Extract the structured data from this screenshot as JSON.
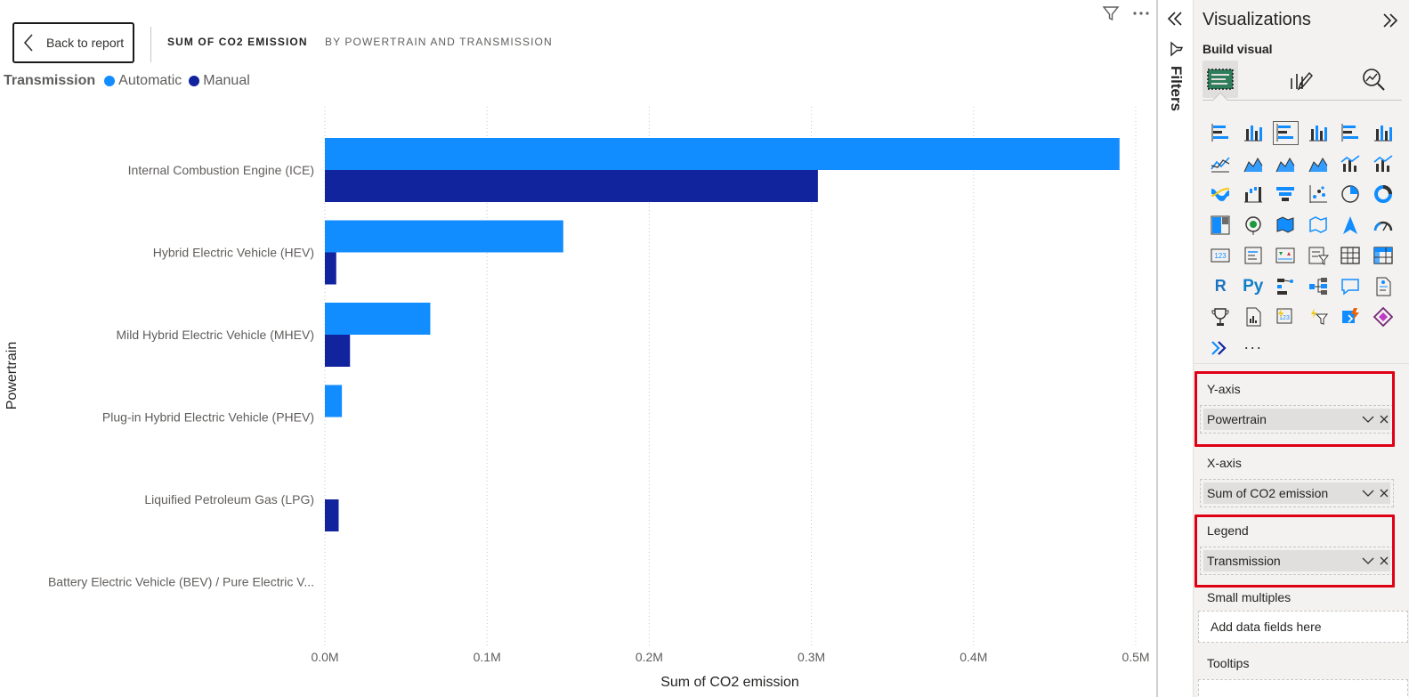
{
  "header": {
    "back_label": "Back to report",
    "title": "SUM OF CO2 EMISSION",
    "subtitle": "BY POWERTRAIN AND TRANSMISSION"
  },
  "icons": [
    "filter-icon",
    "more-options-icon",
    "collapse-icon",
    "expand-icon"
  ],
  "legend": {
    "title": "Transmission",
    "items": [
      {
        "label": "Automatic",
        "color": "#118dff"
      },
      {
        "label": "Manual",
        "color": "#12239e"
      }
    ]
  },
  "chart_data": {
    "type": "bar",
    "orientation": "horizontal",
    "categories": [
      "Internal Combustion Engine (ICE)",
      "Hybrid Electric Vehicle (HEV)",
      "Mild Hybrid Electric Vehicle (MHEV)",
      "Plug-in Hybrid Electric Vehicle (PHEV)",
      "Liquified Petroleum Gas (LPG)",
      "Battery Electric Vehicle (BEV) / Pure Electric V..."
    ],
    "series": [
      {
        "name": "Automatic",
        "color": "#118dff",
        "values": [
          490000,
          147000,
          65000,
          10500,
          0,
          0
        ]
      },
      {
        "name": "Manual",
        "color": "#12239e",
        "values": [
          304000,
          7000,
          15500,
          0,
          8500,
          0
        ]
      }
    ],
    "ticks": [
      {
        "value": 0,
        "label": "0.0M"
      },
      {
        "value": 100000,
        "label": "0.1M"
      },
      {
        "value": 200000,
        "label": "0.2M"
      },
      {
        "value": 300000,
        "label": "0.3M"
      },
      {
        "value": 400000,
        "label": "0.4M"
      },
      {
        "value": 500000,
        "label": "0.5M"
      }
    ],
    "xlim": [
      0,
      500000
    ],
    "xlabel": "Sum of CO2 emission",
    "ylabel": "Powertrain",
    "grid": "vertical dotted"
  },
  "filters_pane": {
    "label": "Filters"
  },
  "viz_pane": {
    "title": "Visualizations",
    "build_label": "Build visual",
    "modes": [
      "build-visual-icon",
      "format-visual-icon",
      "analytics-icon"
    ],
    "gallery": [
      "stacked-bar-chart-icon",
      "stacked-column-chart-icon",
      "clustered-bar-chart-icon",
      "clustered-column-chart-icon",
      "100-stacked-bar-chart-icon",
      "100-stacked-column-chart-icon",
      "line-chart-icon",
      "area-chart-icon",
      "stacked-area-chart-icon",
      "100-stacked-area-chart-icon",
      "line-and-stacked-column-icon",
      "line-and-clustered-column-icon",
      "ribbon-chart-icon",
      "waterfall-chart-icon",
      "funnel-chart-icon",
      "scatter-chart-icon",
      "pie-chart-icon",
      "donut-chart-icon",
      "treemap-icon",
      "map-icon",
      "filled-map-icon",
      "shape-map-icon",
      "azure-map-icon",
      "gauge-icon",
      "card-icon",
      "multi-row-card-icon",
      "kpi-icon",
      "slicer-icon",
      "table-icon",
      "matrix-icon",
      "r-script-visual-icon",
      "python-visual-icon",
      "key-influencers-icon",
      "decomposition-tree-icon",
      "qa-icon",
      "smart-narrative-icon",
      "goals-icon",
      "paginated-report-icon",
      "power-apps-icon",
      "power-automate-icon",
      "new-card-icon",
      "new-slicer-icon",
      "power-automate-flow-icon",
      "more-visuals-icon"
    ],
    "r_label": "R",
    "py_label": "Py",
    "more_label": "···",
    "wells": {
      "yaxis": {
        "label": "Y-axis",
        "field": "Powertrain"
      },
      "xaxis": {
        "label": "X-axis",
        "field": "Sum of CO2 emission"
      },
      "legend": {
        "label": "Legend",
        "field": "Transmission"
      },
      "small_multiples": {
        "label": "Small multiples",
        "placeholder": "Add data fields here"
      },
      "tooltips": {
        "label": "Tooltips"
      }
    },
    "highlight_color": "#e00015"
  }
}
